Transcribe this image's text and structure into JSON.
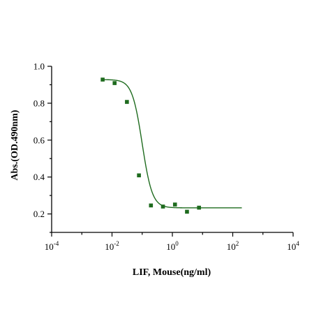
{
  "chart_data": {
    "type": "scatter",
    "title": "",
    "xlabel": "LIF, Mouse(ng/ml)",
    "ylabel": "Abs.(OD.490nm)",
    "x_scale": "log",
    "xlim": [
      0.0001,
      10000
    ],
    "ylim": [
      0.1,
      1.0
    ],
    "x_ticks": [
      {
        "base": "10",
        "exp": "-4",
        "value": 0.0001
      },
      {
        "base": "10",
        "exp": "-2",
        "value": 0.01
      },
      {
        "base": "10",
        "exp": "0",
        "value": 1
      },
      {
        "base": "10",
        "exp": "2",
        "value": 100
      },
      {
        "base": "10",
        "exp": "4",
        "value": 10000
      }
    ],
    "y_ticks": [
      {
        "label": "0.2",
        "value": 0.2
      },
      {
        "label": "0.4",
        "value": 0.4
      },
      {
        "label": "0.6",
        "value": 0.6
      },
      {
        "label": "0.8",
        "value": 0.8
      },
      {
        "label": "1.0",
        "value": 1.0
      }
    ],
    "grid": false,
    "legend": "none",
    "series": [
      {
        "color": "#1e6b1e",
        "marker": "square",
        "points": [
          {
            "x": 0.0049,
            "y": 0.928
          },
          {
            "x": 0.0122,
            "y": 0.909
          },
          {
            "x": 0.0312,
            "y": 0.807
          },
          {
            "x": 0.0781,
            "y": 0.409
          },
          {
            "x": 0.195,
            "y": 0.246
          },
          {
            "x": 0.488,
            "y": 0.24
          },
          {
            "x": 1.22,
            "y": 0.251
          },
          {
            "x": 3.05,
            "y": 0.212
          },
          {
            "x": 7.63,
            "y": 0.234
          }
        ]
      }
    ],
    "fit": {
      "model": "4PL",
      "color": "#1e6b1e",
      "top": 0.928,
      "bottom": 0.233,
      "ec50": 0.1,
      "hill": 2.6,
      "x_range": [
        0.0049,
        200
      ]
    }
  }
}
